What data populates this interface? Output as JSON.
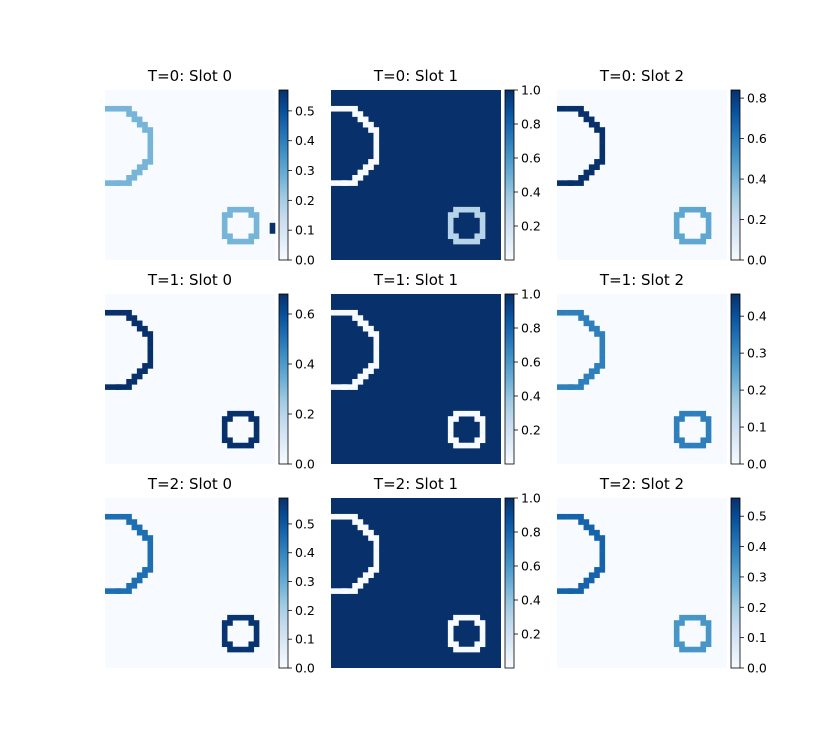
{
  "figure": {
    "background": "#ffffff"
  },
  "colormap": {
    "name": "Blues",
    "stops": [
      "#f7fbff",
      "#deebf7",
      "#c6dbef",
      "#9ecae1",
      "#6baed6",
      "#4292c6",
      "#2171b5",
      "#08519c",
      "#08306b"
    ]
  },
  "chart_data": [
    {
      "type": "heatmap",
      "title": "T=0: Slot 0",
      "colorbar": {
        "min": 0,
        "max": 0.57,
        "ticks": [
          "0.0",
          "0.1",
          "0.2",
          "0.3",
          "0.4",
          "0.5"
        ],
        "tick_values": [
          0,
          0.1,
          0.2,
          0.3,
          0.4,
          0.5
        ]
      },
      "objects": [
        {
          "shape": "arc-ring",
          "location": "left",
          "value": 0.27
        },
        {
          "shape": "ring",
          "location": "bottom-right",
          "value": 0.27
        },
        {
          "shape": "bar",
          "location": "right-edge",
          "value": 0.57
        }
      ],
      "background_value": 0.0
    },
    {
      "type": "heatmap",
      "title": "T=0: Slot 1",
      "colorbar": {
        "min": 0.0,
        "max": 1.0,
        "ticks": [
          "0.2",
          "0.4",
          "0.6",
          "0.8",
          "1.0"
        ],
        "tick_values": [
          0.2,
          0.4,
          0.6,
          0.8,
          1.0
        ]
      },
      "objects": [
        {
          "shape": "arc-ring",
          "location": "left",
          "value": 0.0
        },
        {
          "shape": "ring",
          "location": "bottom-right",
          "value": 0.3
        }
      ],
      "background_value": 1.0
    },
    {
      "type": "heatmap",
      "title": "T=0: Slot 2",
      "colorbar": {
        "min": 0,
        "max": 0.84,
        "ticks": [
          "0.0",
          "0.2",
          "0.4",
          "0.6",
          "0.8"
        ],
        "tick_values": [
          0,
          0.2,
          0.4,
          0.6,
          0.8
        ]
      },
      "objects": [
        {
          "shape": "arc-ring",
          "location": "left",
          "value": 0.84
        },
        {
          "shape": "ring",
          "location": "bottom-right",
          "value": 0.45
        }
      ],
      "background_value": 0.0
    },
    {
      "type": "heatmap",
      "title": "T=1: Slot 0",
      "colorbar": {
        "min": 0,
        "max": 0.68,
        "ticks": [
          "0.0",
          "0.2",
          "0.4",
          "0.6"
        ],
        "tick_values": [
          0,
          0.2,
          0.4,
          0.6
        ]
      },
      "objects": [
        {
          "shape": "arc-ring",
          "location": "left",
          "value": 0.68
        },
        {
          "shape": "ring",
          "location": "bottom-right",
          "value": 0.68
        }
      ],
      "background_value": 0.0
    },
    {
      "type": "heatmap",
      "title": "T=1: Slot 1",
      "colorbar": {
        "min": 0.0,
        "max": 1.0,
        "ticks": [
          "0.2",
          "0.4",
          "0.6",
          "0.8",
          "1.0"
        ],
        "tick_values": [
          0.2,
          0.4,
          0.6,
          0.8,
          1.0
        ]
      },
      "objects": [
        {
          "shape": "arc-ring",
          "location": "left",
          "value": 0.0
        },
        {
          "shape": "ring",
          "location": "bottom-right",
          "value": 0.0
        }
      ],
      "background_value": 1.0
    },
    {
      "type": "heatmap",
      "title": "T=1: Slot 2",
      "colorbar": {
        "min": 0,
        "max": 0.46,
        "ticks": [
          "0.0",
          "0.1",
          "0.2",
          "0.3",
          "0.4"
        ],
        "tick_values": [
          0,
          0.1,
          0.2,
          0.3,
          0.4
        ]
      },
      "objects": [
        {
          "shape": "arc-ring",
          "location": "left",
          "value": 0.32
        },
        {
          "shape": "ring",
          "location": "bottom-right",
          "value": 0.32
        }
      ],
      "background_value": 0.0
    },
    {
      "type": "heatmap",
      "title": "T=2: Slot 0",
      "colorbar": {
        "min": 0,
        "max": 0.59,
        "ticks": [
          "0.0",
          "0.1",
          "0.2",
          "0.3",
          "0.4",
          "0.5"
        ],
        "tick_values": [
          0,
          0.1,
          0.2,
          0.3,
          0.4,
          0.5
        ]
      },
      "objects": [
        {
          "shape": "arc-ring",
          "location": "left",
          "value": 0.45
        },
        {
          "shape": "ring",
          "location": "bottom-right",
          "value": 0.58
        }
      ],
      "background_value": 0.0
    },
    {
      "type": "heatmap",
      "title": "T=2: Slot 1",
      "colorbar": {
        "min": 0.0,
        "max": 1.0,
        "ticks": [
          "0.2",
          "0.4",
          "0.6",
          "0.8",
          "1.0"
        ],
        "tick_values": [
          0.2,
          0.4,
          0.6,
          0.8,
          1.0
        ]
      },
      "objects": [
        {
          "shape": "arc-ring",
          "location": "left",
          "value": 0.0
        },
        {
          "shape": "ring",
          "location": "bottom-right",
          "value": 0.0
        }
      ],
      "background_value": 1.0
    },
    {
      "type": "heatmap",
      "title": "T=2: Slot 2",
      "colorbar": {
        "min": 0,
        "max": 0.56,
        "ticks": [
          "0.0",
          "0.1",
          "0.2",
          "0.3",
          "0.4",
          "0.5"
        ],
        "tick_values": [
          0,
          0.1,
          0.2,
          0.3,
          0.4,
          0.5
        ]
      },
      "objects": [
        {
          "shape": "arc-ring",
          "location": "left",
          "value": 0.45
        },
        {
          "shape": "ring",
          "location": "bottom-right",
          "value": 0.34
        }
      ],
      "background_value": 0.0
    }
  ]
}
